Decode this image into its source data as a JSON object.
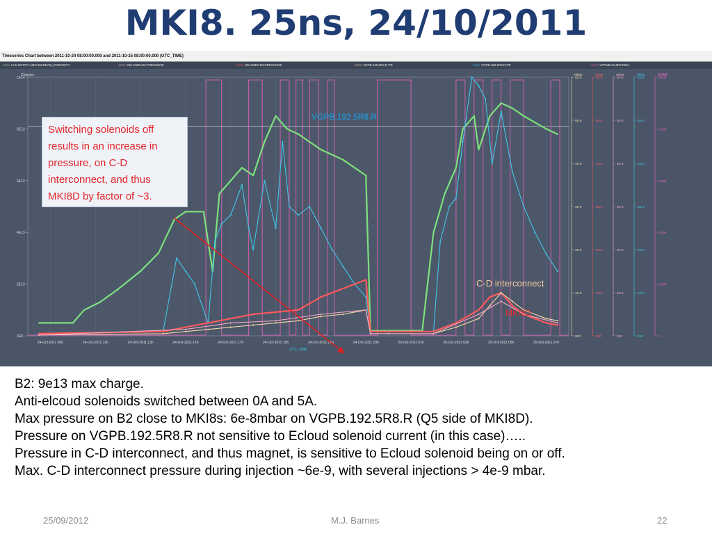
{
  "slide_title": "MKI8. 25ns, 24/10/2011",
  "screenshot": {
    "header": "Timeseries Chart between 2011-10-24 08:00:00.000 and 2011-10-25 08:00:00.000 (UTC_TIME)",
    "legend": [
      {
        "label": "LHC.BCTFR.A6R4.B2:BEAM_INTENSITY",
        "color": "#9be89b"
      },
      {
        "label": "MKI.C5R8.B2:PRESSURE",
        "color": "#f2a8c0"
      },
      {
        "label": "MKI.D5R8.B2:PRESSURE",
        "color": "#ff6060"
      },
      {
        "label": "VGPB.138.5R8.R.PR",
        "color": "#f5d9a8"
      },
      {
        "label": "VGPB.192.5R8.R.PR",
        "color": "#41c7e8"
      },
      {
        "label": "VRPMB.21.5R8.RMA",
        "color": "#f060c0"
      }
    ]
  },
  "chart_data": {
    "type": "line",
    "xlabel": "UTC_TIME",
    "x_ticks": [
      "24-Oct-2011 09h",
      "24-Oct-2011 11h",
      "24-Oct-2011 13h",
      "24-Oct-2011 15h",
      "24-Oct-2011 17h",
      "24-Oct-2011 19h",
      "24-Oct-2011 21h",
      "24-Oct-2011 23h",
      "25-Oct-2011 01h",
      "25-Oct-2011 03h",
      "25-Oct-2011 05h",
      "25-Oct-2011 07h"
    ],
    "x_range_hours": [
      8,
      32
    ],
    "left_axis": {
      "label": "Charges",
      "ticks": [
        "1E14",
        "8E13",
        "6E13",
        "4E13",
        "2E13",
        "0E0"
      ],
      "ylim": [
        0,
        100000000000000.0
      ]
    },
    "right_axes": [
      {
        "label": "mbar",
        "ticks": [
          "6E-8",
          "5E-8",
          "4E-8",
          "3E-8",
          "2E-8",
          "1E-8",
          "0E0"
        ],
        "color": "#f5d9a8"
      },
      {
        "label": "mbar",
        "ticks": [
          "6E-8",
          "5E-8",
          "4E-8",
          "3E-8",
          "2E-8",
          "1E-8",
          "0E0"
        ],
        "color": "#ff6060"
      },
      {
        "label": "mbar",
        "ticks": [
          "6E-8",
          "5E-8",
          "4E-8",
          "3E-8",
          "2E-8",
          "1E-8",
          "0E0"
        ],
        "color": "#f2a8c0"
      },
      {
        "label": "mbar",
        "ticks": [
          "6E-8",
          "5E-8",
          "4E-8",
          "3E-8",
          "2E-8",
          "1E-8",
          "0E0"
        ],
        "color": "#41c7e8"
      },
      {
        "label": "NONE",
        "ticks": [
          "5,000",
          "4,000",
          "3,000",
          "2,000",
          "1,000",
          "0"
        ],
        "color": "#f060c0"
      }
    ],
    "series": [
      {
        "name": "LHC.BCTFR.A6R4.B2:BEAM_INTENSITY",
        "color": "#7ee07e",
        "x": [
          8.5,
          10.0,
          10.5,
          11.2,
          12.0,
          13.0,
          13.8,
          14.5,
          15.0,
          15.8,
          16.2,
          16.5,
          17.0,
          17.5,
          18.0,
          18.5,
          19.0,
          19.5,
          20.0,
          20.5,
          21.0,
          22.0,
          22.5,
          23.0,
          23.2,
          24.0,
          25.5,
          26.0,
          26.5,
          27.0,
          27.3,
          27.8,
          28.0,
          28.5,
          29.0,
          29.5,
          30.0,
          31.0,
          31.5
        ],
        "y": [
          5000000000000.0,
          5000000000000.0,
          10000000000000.0,
          13000000000000.0,
          18000000000000.0,
          25000000000000.0,
          32000000000000.0,
          45000000000000.0,
          48000000000000.0,
          48000000000000.0,
          25000000000000.0,
          55000000000000.0,
          60000000000000.0,
          65000000000000.0,
          62000000000000.0,
          75000000000000.0,
          85000000000000.0,
          80000000000000.0,
          78000000000000.0,
          75000000000000.0,
          72000000000000.0,
          68000000000000.0,
          65000000000000.0,
          62000000000000.0,
          2000000000000.0,
          2000000000000.0,
          2000000000000.0,
          40000000000000.0,
          55000000000000.0,
          65000000000000.0,
          80000000000000.0,
          85000000000000.0,
          72000000000000.0,
          85000000000000.0,
          90000000000000.0,
          88000000000000.0,
          85000000000000.0,
          80000000000000.0,
          78000000000000.0
        ]
      },
      {
        "name": "VGPB.192.5R8.R.PR",
        "color": "#41c7e8",
        "x": [
          8.5,
          14.0,
          14.6,
          15.0,
          15.4,
          16.0,
          16.3,
          16.6,
          17.0,
          17.5,
          17.8,
          18.0,
          18.5,
          19.0,
          19.3,
          19.6,
          20.0,
          20.5,
          21.0,
          21.5,
          22.0,
          22.5,
          23.0,
          23.2,
          24.0,
          26.0,
          26.3,
          26.7,
          27.0,
          27.3,
          27.7,
          28.0,
          28.3,
          28.6,
          29.0,
          29.5,
          30.0,
          30.5,
          31.0,
          31.5
        ],
        "y": [
          5e-10,
          1e-09,
          1.8e-08,
          1.5e-08,
          1.2e-08,
          3e-09,
          2.2e-08,
          2.6e-08,
          2.8e-08,
          3.5e-08,
          2.5e-08,
          2e-08,
          3.6e-08,
          2.5e-08,
          4.5e-08,
          3e-08,
          2.8e-08,
          3e-08,
          2.5e-08,
          2e-08,
          1.6e-08,
          1.2e-08,
          9e-09,
          1e-09,
          1e-09,
          1e-09,
          2.2e-08,
          3e-08,
          3.2e-08,
          4.5e-08,
          6e-08,
          5.8e-08,
          5.5e-08,
          4e-08,
          5.2e-08,
          3.8e-08,
          3e-08,
          2.4e-08,
          1.9e-08,
          1.5e-08
        ]
      },
      {
        "name": "MKI.D5R8.B2:PRESSURE",
        "color": "#ff5a5a",
        "x": [
          8.5,
          14.0,
          15.0,
          16.0,
          17.0,
          18.0,
          19.0,
          20.0,
          21.0,
          21.5,
          22.0,
          22.5,
          23.0,
          23.2,
          24.0,
          26.0,
          27.0,
          28.0,
          28.5,
          29.0,
          29.5,
          30.0,
          30.5,
          31.0,
          31.5
        ],
        "y": [
          5e-10,
          1e-09,
          2e-09,
          3e-09,
          4e-09,
          5e-09,
          5.5e-09,
          6e-09,
          9e-09,
          1e-08,
          1.1e-08,
          1.2e-08,
          1.3e-08,
          1e-09,
          1e-09,
          1e-09,
          3e-09,
          6e-09,
          9e-09,
          1e-08,
          7e-09,
          5e-09,
          4e-09,
          3e-09,
          2.5e-09
        ]
      },
      {
        "name": "VGPB.138.5R8.R.PR",
        "color": "#f5d9a8",
        "x": [
          8.5,
          14.0,
          15.0,
          16.0,
          17.0,
          18.0,
          19.0,
          20.0,
          21.0,
          22.0,
          23.0,
          23.2,
          24.0,
          26.0,
          27.0,
          28.0,
          28.5,
          29.0,
          29.5,
          30.0,
          31.0,
          31.5
        ],
        "y": [
          2e-10,
          5e-10,
          1e-09,
          1.5e-09,
          2e-09,
          2.5e-09,
          3e-09,
          3.5e-09,
          4.5e-09,
          5e-09,
          6e-09,
          5e-10,
          5e-10,
          5e-10,
          2e-09,
          4e-09,
          7e-09,
          1e-08,
          8e-09,
          6e-09,
          4e-09,
          3.5e-09
        ]
      },
      {
        "name": "MKI.C5R8.B2:PRESSURE",
        "color": "#f2a8c0",
        "x": [
          8.5,
          15.0,
          17.0,
          19.0,
          21.0,
          23.0,
          23.2,
          26.0,
          28.0,
          29.0,
          30.0,
          31.5
        ],
        "y": [
          2e-10,
          1.5e-09,
          3e-09,
          3.5e-09,
          5e-09,
          6e-09,
          5e-10,
          5e-10,
          5e-09,
          8e-09,
          5e-09,
          3e-09
        ]
      }
    ],
    "solenoid_square_wave": {
      "name": "VRPMB.21.5R8.RMA",
      "color": "#f060c0",
      "on_intervals": [
        [
          15.9,
          16.6
        ],
        [
          17.8,
          18.4
        ],
        [
          19.2,
          19.6
        ],
        [
          19.9,
          20.2
        ],
        [
          20.5,
          20.9
        ],
        [
          21.3,
          21.6
        ],
        [
          23.5,
          25.0
        ],
        [
          27.0,
          27.4
        ],
        [
          27.8,
          28.2
        ],
        [
          28.6,
          29.0
        ],
        [
          29.4,
          30.0
        ],
        [
          31.2,
          31.6
        ]
      ]
    },
    "ref_line_y": 81000000000000.0
  },
  "annotations": {
    "box": [
      "Switching solenoids off",
      "results in an increase in",
      "pressure, on C-D",
      "interconnect, and thus",
      "MKI8D by factor of ~3."
    ],
    "vgpb": "VGPB.192.5R8.R",
    "cd": "C-D interconnect",
    "mki": "MKI8D",
    "arrow_color": "#e0201e"
  },
  "bullets": [
    "B2: 9e13 max charge.",
    "Anti-elcoud solenoids switched between 0A and 5A.",
    "Max pressure on B2 close to MKI8s: 6e-8mbar on VGPB.192.5R8.R (Q5 side of MKI8D).",
    "Pressure on VGPB.192.5R8.R not sensitive to Ecloud solenoid current (in this case)…..",
    "Pressure in C-D interconnect, and thus magnet, is sensitive to Ecloud solenoid being on or off.",
    "Max. C-D interconnect pressure during injection ~6e-9, with several injections > 4e-9 mbar."
  ],
  "footer": {
    "date": "25/09/2012",
    "author": "M.J. Barnes",
    "page": "22"
  }
}
